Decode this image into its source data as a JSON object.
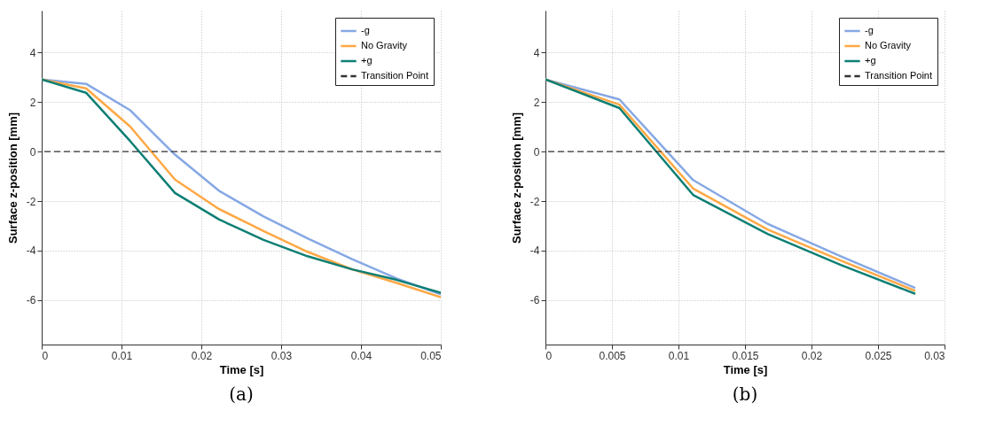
{
  "chart_data": [
    {
      "type": "line",
      "xlabel": "Time [s]",
      "ylabel": "Surface z-position [mm]",
      "annotations": [
        "(a)"
      ],
      "x": [
        0,
        0.00556,
        0.0111,
        0.0167,
        0.0222,
        0.0278,
        0.0333,
        0.0389,
        0.0444,
        0.05
      ],
      "series": [
        {
          "name": "-g",
          "color": "#86a8e4",
          "values": [
            2.92,
            2.74,
            1.67,
            -0.12,
            -1.58,
            -2.62,
            -3.51,
            -4.35,
            -5.12,
            -5.77
          ]
        },
        {
          "name": "No Gravity",
          "color": "#ffa845",
          "values": [
            2.92,
            2.56,
            1.01,
            -1.13,
            -2.32,
            -3.21,
            -4.05,
            -4.76,
            -5.3,
            -5.89
          ]
        },
        {
          "name": "+g",
          "color": "#0e7f74",
          "values": [
            2.92,
            2.38,
            0.42,
            -1.67,
            -2.74,
            -3.57,
            -4.23,
            -4.76,
            -5.18,
            -5.71
          ]
        }
      ],
      "ref_lines": [
        {
          "axis": "y",
          "value": 0,
          "label": "Transition Point",
          "color": "#333333",
          "line_style": "dashed"
        }
      ],
      "xlim": [
        0,
        0.05
      ],
      "xticks": [
        0,
        0.01,
        0.02,
        0.03,
        0.04,
        0.05
      ],
      "ylim": [
        -7.8,
        5.7
      ],
      "yticks": [
        -6,
        -4,
        -2,
        0,
        2,
        4
      ],
      "grid": true,
      "legend": "top right",
      "line_style": "solid",
      "marker": "none"
    },
    {
      "type": "line",
      "xlabel": "Time [s]",
      "ylabel": "Surface z-position [mm]",
      "annotations": [
        "(b)"
      ],
      "x": [
        0,
        0.00556,
        0.0111,
        0.0167,
        0.0222,
        0.0278
      ],
      "series": [
        {
          "name": "-g",
          "color": "#86a8e4",
          "values": [
            2.92,
            2.11,
            -1.15,
            -2.92,
            -4.23,
            -5.51
          ]
        },
        {
          "name": "No Gravity",
          "color": "#ffa845",
          "values": [
            2.92,
            1.9,
            -1.49,
            -3.15,
            -4.4,
            -5.63
          ]
        },
        {
          "name": "+g",
          "color": "#0e7f74",
          "values": [
            2.92,
            1.76,
            -1.75,
            -3.33,
            -4.58,
            -5.75
          ]
        }
      ],
      "ref_lines": [
        {
          "axis": "y",
          "value": 0,
          "label": "Transition Point",
          "color": "#333333",
          "line_style": "dashed"
        }
      ],
      "xlim": [
        0,
        0.03
      ],
      "xticks": [
        0,
        0.005,
        0.01,
        0.015,
        0.02,
        0.025,
        0.03
      ],
      "ylim": [
        -7.8,
        5.7
      ],
      "yticks": [
        -6,
        -4,
        -2,
        0,
        2,
        4
      ],
      "grid": true,
      "legend": "top right",
      "line_style": "solid",
      "marker": "none"
    }
  ]
}
